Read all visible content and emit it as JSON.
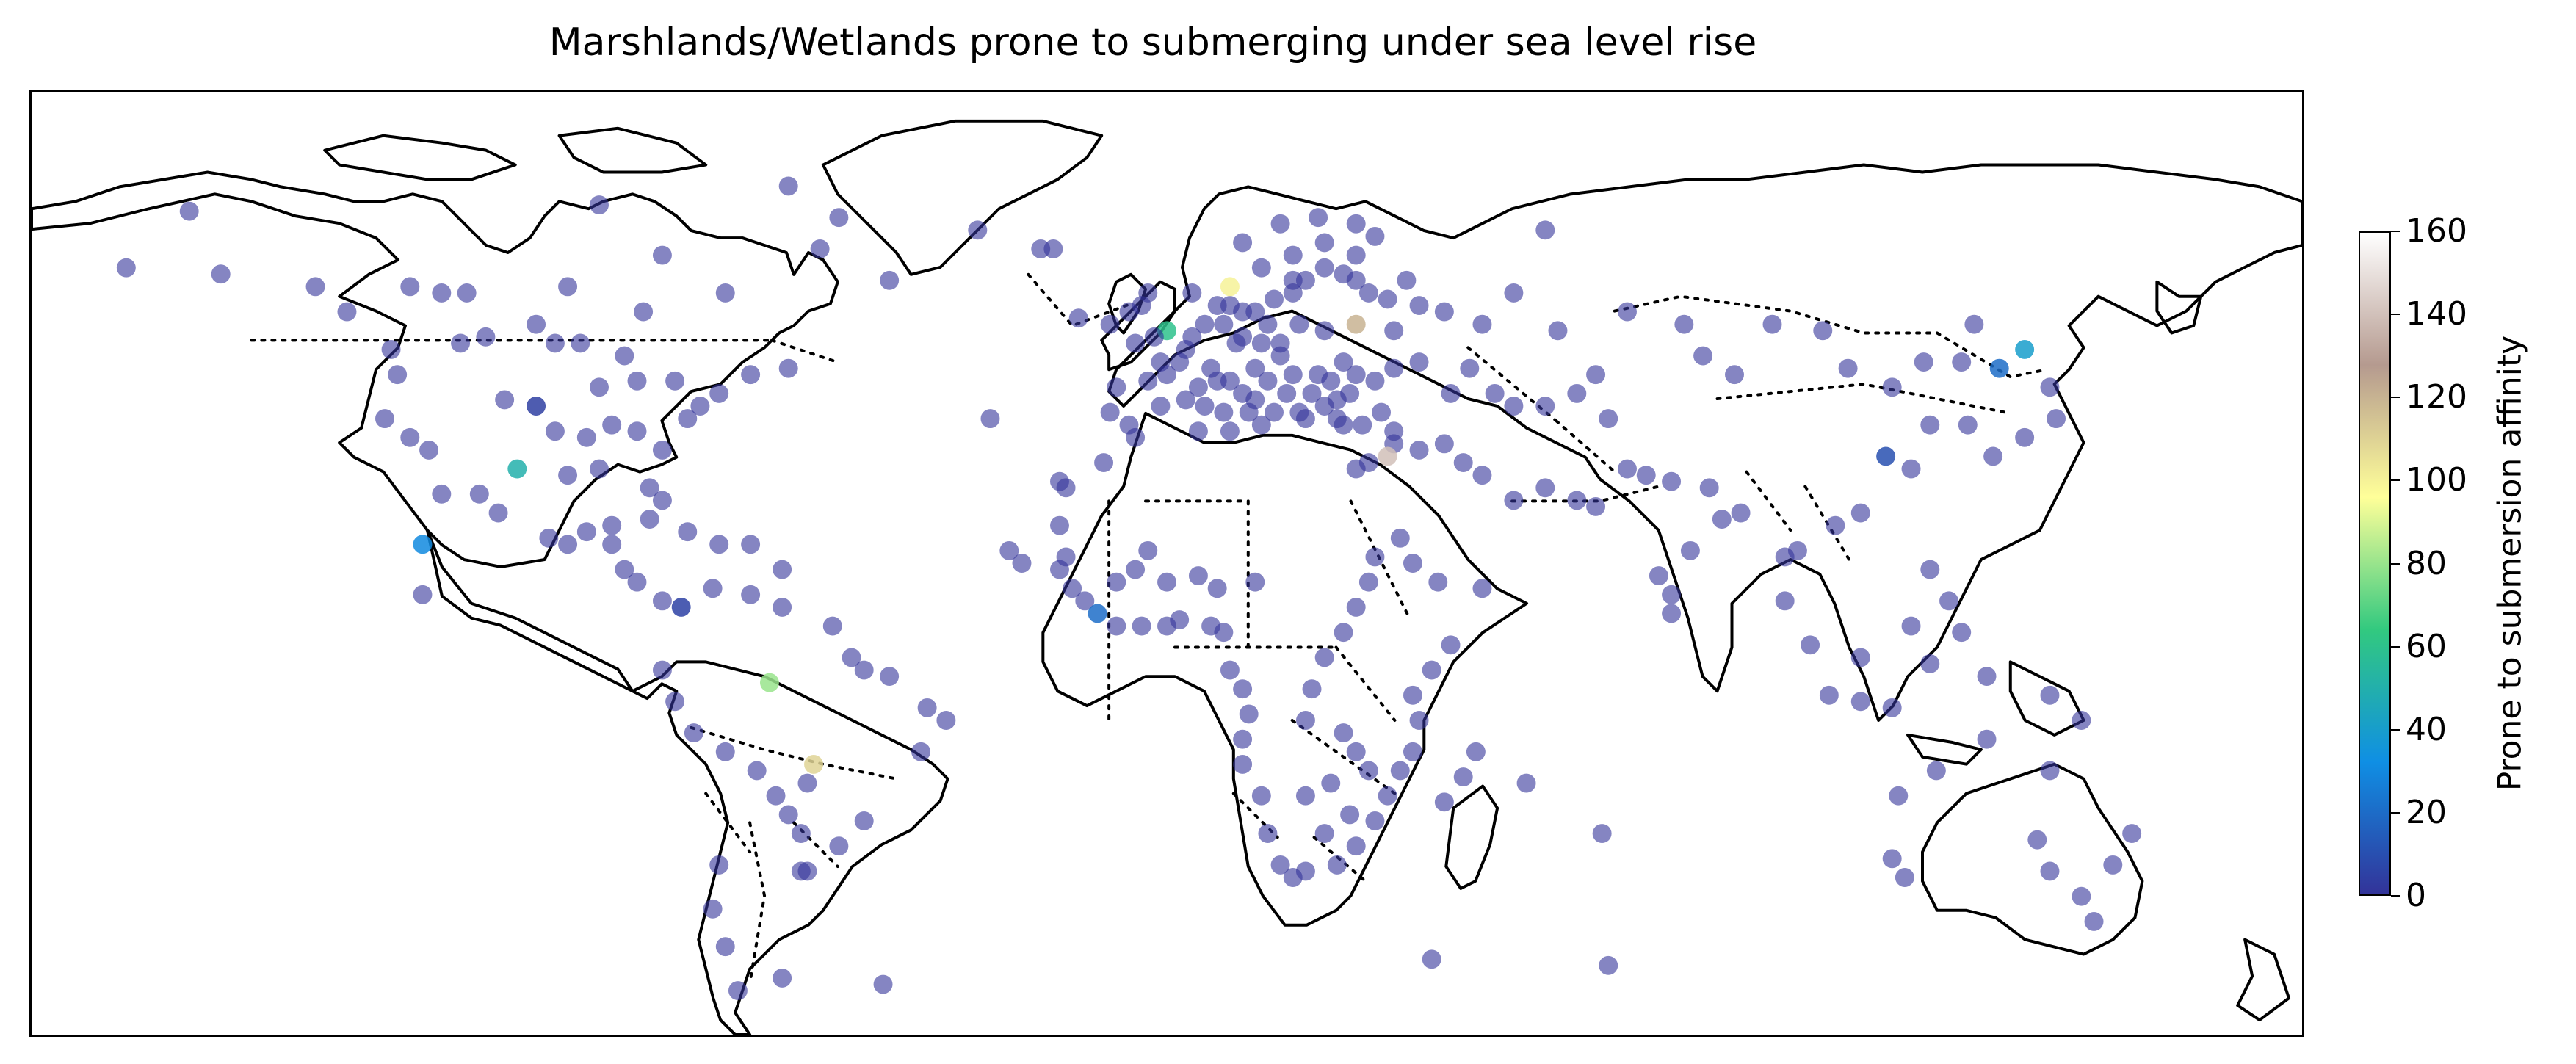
{
  "title": "Marshlands/Wetlands prone to submerging under sea level rise",
  "colorbar": {
    "label": "Prone to submersion affinity",
    "ticks": [
      "0",
      "20",
      "40",
      "60",
      "80",
      "100",
      "120",
      "140",
      "160"
    ],
    "range": [
      0,
      160
    ],
    "colormap": "terrain",
    "colors": [
      "#333399",
      "#0f8fe4",
      "#32c97f",
      "#ffff99",
      "#b59a8f",
      "#ffffff"
    ]
  },
  "chart_data": {
    "type": "scatter",
    "title": "Marshlands/Wetlands prone to submerging under sea level rise",
    "projection": "equirectangular",
    "xlim": [
      -180,
      180
    ],
    "ylim": [
      -60,
      90
    ],
    "color_label": "Prone to submersion affinity",
    "color_range": [
      0,
      160
    ],
    "points": [
      [
        -124,
        38,
        0
      ],
      [
        -117,
        33,
        0
      ],
      [
        -95,
        29,
        0
      ],
      [
        -90,
        30,
        0
      ],
      [
        -82,
        27,
        0
      ],
      [
        -80,
        25,
        0
      ],
      [
        -76,
        38,
        0
      ],
      [
        -74,
        40,
        0
      ],
      [
        -71,
        42,
        0
      ],
      [
        -66,
        45,
        0
      ],
      [
        -60,
        46,
        0
      ],
      [
        -123,
        49,
        0
      ],
      [
        -122,
        45,
        0
      ],
      [
        -130,
        55,
        0
      ],
      [
        -135,
        59,
        0
      ],
      [
        -150,
        61,
        0
      ],
      [
        -165,
        62,
        0
      ],
      [
        -155,
        71,
        0
      ],
      [
        -120,
        59,
        0
      ],
      [
        -115,
        58,
        0
      ],
      [
        -111,
        58,
        0
      ],
      [
        -108,
        51,
        0
      ],
      [
        -100,
        53,
        0
      ],
      [
        -97,
        50,
        0
      ],
      [
        -93,
        50,
        0
      ],
      [
        -86,
        48,
        0
      ],
      [
        -83,
        55,
        0
      ],
      [
        -95,
        59,
        0
      ],
      [
        -112,
        50,
        0
      ],
      [
        -105,
        41,
        0
      ],
      [
        -100,
        40,
        4
      ],
      [
        -97,
        36,
        0
      ],
      [
        -92,
        35,
        0
      ],
      [
        -88,
        37,
        0
      ],
      [
        -84,
        36,
        0
      ],
      [
        -80,
        33,
        0
      ],
      [
        -90,
        43,
        0
      ],
      [
        -84,
        44,
        0
      ],
      [
        -78,
        44,
        0
      ],
      [
        -120,
        35,
        0
      ],
      [
        -109,
        26,
        0
      ],
      [
        -106,
        23,
        0
      ],
      [
        -98,
        19,
        0
      ],
      [
        -95,
        18,
        0
      ],
      [
        -92,
        20,
        0
      ],
      [
        -88,
        21,
        0
      ],
      [
        -88,
        18,
        0
      ],
      [
        -86,
        14,
        0
      ],
      [
        -84,
        12,
        0
      ],
      [
        -80,
        9,
        0
      ],
      [
        -77,
        8,
        5
      ],
      [
        -82,
        22,
        0
      ],
      [
        -76,
        20,
        0
      ],
      [
        -71,
        18,
        0
      ],
      [
        -66,
        18,
        0
      ],
      [
        -61,
        14,
        0
      ],
      [
        -72,
        11,
        0
      ],
      [
        -66,
        10,
        0
      ],
      [
        -61,
        8,
        0
      ],
      [
        -53,
        5,
        0
      ],
      [
        -50,
        0,
        0
      ],
      [
        -48,
        -2,
        0
      ],
      [
        -44,
        -3,
        0
      ],
      [
        -38,
        -8,
        0
      ],
      [
        -35,
        -10,
        0
      ],
      [
        -39,
        -15,
        0
      ],
      [
        -80,
        -2,
        0
      ],
      [
        -78,
        -7,
        0
      ],
      [
        -75,
        -12,
        0
      ],
      [
        -70,
        -15,
        0
      ],
      [
        -65,
        -18,
        0
      ],
      [
        -62,
        -22,
        0
      ],
      [
        -60,
        -25,
        0
      ],
      [
        -58,
        -28,
        0
      ],
      [
        -58,
        -34,
        0
      ],
      [
        -52,
        -30,
        0
      ],
      [
        -48,
        -26,
        0
      ],
      [
        -56,
        -17,
        110
      ],
      [
        -57,
        -20,
        0
      ],
      [
        -63,
        -4,
        80
      ],
      [
        -71,
        -33,
        0
      ],
      [
        -72,
        -40,
        0
      ],
      [
        -70,
        -46,
        0
      ],
      [
        -68,
        -53,
        0
      ],
      [
        -61,
        -51,
        0
      ],
      [
        -57,
        -34,
        0
      ],
      [
        -118,
        18,
        30
      ],
      [
        -118,
        10,
        0
      ],
      [
        -103,
        30,
        50
      ],
      [
        -115,
        26,
        0
      ],
      [
        -44,
        60,
        0
      ],
      [
        -55,
        65,
        0
      ],
      [
        -52,
        70,
        0
      ],
      [
        -60,
        75,
        0
      ],
      [
        -90,
        72,
        0
      ],
      [
        -80,
        64,
        0
      ],
      [
        -70,
        58,
        0
      ],
      [
        -30,
        68,
        0
      ],
      [
        -20,
        65,
        0
      ],
      [
        -18,
        65,
        0
      ],
      [
        -14,
        54,
        0
      ],
      [
        -9,
        53,
        0
      ],
      [
        -6,
        55,
        0
      ],
      [
        -4,
        56,
        0
      ],
      [
        -3,
        58,
        0
      ],
      [
        0,
        52,
        60
      ],
      [
        -2,
        51,
        0
      ],
      [
        -5,
        50,
        0
      ],
      [
        -8,
        43,
        0
      ],
      [
        -9,
        39,
        0
      ],
      [
        -6,
        37,
        0
      ],
      [
        0,
        45,
        0
      ],
      [
        2,
        47,
        0
      ],
      [
        5,
        43,
        0
      ],
      [
        8,
        44,
        0
      ],
      [
        10,
        44,
        0
      ],
      [
        12,
        42,
        0
      ],
      [
        14,
        41,
        0
      ],
      [
        16,
        44,
        0
      ],
      [
        19,
        42,
        0
      ],
      [
        22,
        38,
        0
      ],
      [
        25,
        40,
        0
      ],
      [
        27,
        41,
        0
      ],
      [
        30,
        45,
        0
      ],
      [
        33,
        44,
        0
      ],
      [
        36,
        46,
        0
      ],
      [
        40,
        47,
        0
      ],
      [
        45,
        42,
        0
      ],
      [
        28,
        47,
        0
      ],
      [
        24,
        45,
        0
      ],
      [
        20,
        45,
        0
      ],
      [
        18,
        48,
        0
      ],
      [
        15,
        50,
        0
      ],
      [
        12,
        51,
        0
      ],
      [
        9,
        53,
        0
      ],
      [
        6,
        53,
        0
      ],
      [
        4,
        51,
        0
      ],
      [
        8,
        56,
        0
      ],
      [
        10,
        56,
        0
      ],
      [
        12,
        55,
        0
      ],
      [
        14,
        55,
        0
      ],
      [
        17,
        57,
        0
      ],
      [
        20,
        58,
        0
      ],
      [
        22,
        60,
        0
      ],
      [
        25,
        62,
        0
      ],
      [
        28,
        61,
        0
      ],
      [
        30,
        60,
        0
      ],
      [
        32,
        58,
        0
      ],
      [
        35,
        57,
        0
      ],
      [
        40,
        56,
        0
      ],
      [
        38,
        60,
        0
      ],
      [
        30,
        64,
        0
      ],
      [
        25,
        66,
        0
      ],
      [
        20,
        64,
        0
      ],
      [
        15,
        62,
        0
      ],
      [
        12,
        66,
        0
      ],
      [
        18,
        69,
        0
      ],
      [
        24,
        70,
        0
      ],
      [
        30,
        69,
        0
      ],
      [
        33,
        67,
        0
      ],
      [
        44,
        55,
        0
      ],
      [
        50,
        53,
        0
      ],
      [
        48,
        46,
        0
      ],
      [
        52,
        42,
        0
      ],
      [
        55,
        40,
        0
      ],
      [
        60,
        40,
        0
      ],
      [
        65,
        42,
        0
      ],
      [
        70,
        38,
        0
      ],
      [
        68,
        45,
        0
      ],
      [
        62,
        52,
        0
      ],
      [
        73,
        55,
        0
      ],
      [
        82,
        53,
        0
      ],
      [
        85,
        48,
        0
      ],
      [
        90,
        45,
        0
      ],
      [
        96,
        53,
        0
      ],
      [
        104,
        52,
        0
      ],
      [
        108,
        46,
        0
      ],
      [
        115,
        43,
        0
      ],
      [
        120,
        47,
        0
      ],
      [
        126,
        47,
        0
      ],
      [
        128,
        53,
        0
      ],
      [
        132,
        46,
        20
      ],
      [
        136,
        49,
        40
      ],
      [
        140,
        43,
        0
      ],
      [
        141,
        38,
        0
      ],
      [
        136,
        35,
        0
      ],
      [
        131,
        32,
        0
      ],
      [
        127,
        37,
        0
      ],
      [
        121,
        37,
        0
      ],
      [
        118,
        30,
        0
      ],
      [
        114,
        32,
        10
      ],
      [
        110,
        23,
        0
      ],
      [
        106,
        21,
        0
      ],
      [
        100,
        17,
        0
      ],
      [
        98,
        9,
        0
      ],
      [
        102,
        2,
        0
      ],
      [
        105,
        -6,
        0
      ],
      [
        110,
        -7,
        0
      ],
      [
        115,
        -8,
        0
      ],
      [
        121,
        -1,
        0
      ],
      [
        121,
        14,
        0
      ],
      [
        124,
        9,
        0
      ],
      [
        126,
        4,
        0
      ],
      [
        118,
        5,
        0
      ],
      [
        110,
        0,
        0
      ],
      [
        130,
        -3,
        0
      ],
      [
        140,
        -6,
        0
      ],
      [
        145,
        -10,
        0
      ],
      [
        140,
        -18,
        0
      ],
      [
        130,
        -13,
        0
      ],
      [
        122,
        -18,
        0
      ],
      [
        116,
        -22,
        0
      ],
      [
        115,
        -32,
        0
      ],
      [
        117,
        -35,
        0
      ],
      [
        138,
        -29,
        0
      ],
      [
        140,
        -34,
        0
      ],
      [
        145,
        -38,
        0
      ],
      [
        150,
        -33,
        0
      ],
      [
        153,
        -28,
        0
      ],
      [
        147,
        -42,
        0
      ],
      [
        78,
        13,
        0
      ],
      [
        80,
        10,
        0
      ],
      [
        83,
        17,
        0
      ],
      [
        88,
        22,
        0
      ],
      [
        91,
        23,
        0
      ],
      [
        86,
        27,
        0
      ],
      [
        80,
        28,
        0
      ],
      [
        76,
        29,
        0
      ],
      [
        73,
        30,
        0
      ],
      [
        68,
        24,
        0
      ],
      [
        65,
        25,
        0
      ],
      [
        60,
        27,
        0
      ],
      [
        55,
        25,
        0
      ],
      [
        50,
        29,
        0
      ],
      [
        47,
        31,
        0
      ],
      [
        44,
        34,
        0
      ],
      [
        40,
        33,
        0
      ],
      [
        36,
        34,
        0
      ],
      [
        32,
        31,
        0
      ],
      [
        30,
        30,
        0
      ],
      [
        35,
        32,
        140
      ],
      [
        36,
        36,
        0
      ],
      [
        28,
        37,
        0
      ],
      [
        15,
        37,
        0
      ],
      [
        10,
        36,
        0
      ],
      [
        5,
        36,
        0
      ],
      [
        -5,
        35,
        0
      ],
      [
        -10,
        31,
        0
      ],
      [
        -16,
        27,
        0
      ],
      [
        -17,
        21,
        0
      ],
      [
        -16,
        16,
        0
      ],
      [
        -17,
        14,
        0
      ],
      [
        -15,
        11,
        0
      ],
      [
        -13,
        9,
        0
      ],
      [
        -11,
        7,
        20
      ],
      [
        -8,
        5,
        0
      ],
      [
        -4,
        5,
        0
      ],
      [
        0,
        5,
        0
      ],
      [
        2,
        6,
        0
      ],
      [
        7,
        5,
        0
      ],
      [
        9,
        4,
        0
      ],
      [
        10,
        -2,
        0
      ],
      [
        12,
        -5,
        0
      ],
      [
        13,
        -9,
        0
      ],
      [
        12,
        -13,
        0
      ],
      [
        12,
        -17,
        0
      ],
      [
        15,
        -22,
        0
      ],
      [
        16,
        -28,
        0
      ],
      [
        18,
        -33,
        0
      ],
      [
        20,
        -35,
        0
      ],
      [
        22,
        -34,
        0
      ],
      [
        27,
        -33,
        0
      ],
      [
        30,
        -30,
        0
      ],
      [
        33,
        -26,
        0
      ],
      [
        35,
        -22,
        0
      ],
      [
        37,
        -18,
        0
      ],
      [
        39,
        -15,
        0
      ],
      [
        40,
        -10,
        0
      ],
      [
        39,
        -6,
        0
      ],
      [
        42,
        -2,
        0
      ],
      [
        45,
        2,
        0
      ],
      [
        50,
        11,
        0
      ],
      [
        43,
        12,
        0
      ],
      [
        39,
        15,
        0
      ],
      [
        37,
        19,
        0
      ],
      [
        33,
        16,
        0
      ],
      [
        32,
        12,
        0
      ],
      [
        30,
        8,
        0
      ],
      [
        28,
        4,
        0
      ],
      [
        25,
        0,
        0
      ],
      [
        23,
        -5,
        0
      ],
      [
        22,
        -10,
        0
      ],
      [
        28,
        -12,
        0
      ],
      [
        30,
        -15,
        0
      ],
      [
        32,
        -18,
        0
      ],
      [
        26,
        -20,
        0
      ],
      [
        22,
        -22,
        0
      ],
      [
        29,
        -25,
        0
      ],
      [
        25,
        -28,
        0
      ],
      [
        47,
        -19,
        0
      ],
      [
        57,
        -20,
        0
      ],
      [
        44,
        -23,
        0
      ],
      [
        49,
        -15,
        0
      ],
      [
        -8,
        12,
        0
      ],
      [
        -5,
        14,
        0
      ],
      [
        0,
        12,
        0
      ],
      [
        5,
        13,
        0
      ],
      [
        8,
        11,
        0
      ],
      [
        -3,
        17,
        0
      ],
      [
        14,
        12,
        0
      ],
      [
        -25,
        17,
        0
      ],
      [
        -23,
        15,
        0
      ],
      [
        -17,
        28,
        0
      ],
      [
        -28,
        38,
        0
      ],
      [
        -45,
        -52,
        0
      ],
      [
        42,
        -48,
        0
      ],
      [
        70,
        -49,
        0
      ],
      [
        69,
        -28,
        0
      ],
      [
        80,
        7,
        0
      ],
      [
        98,
        16,
        0
      ],
      [
        10,
        59,
        100
      ],
      [
        4,
        58,
        0
      ],
      [
        20,
        60,
        0
      ],
      [
        60,
        68,
        0
      ],
      [
        55,
        58,
        0
      ],
      [
        36,
        52,
        0
      ],
      [
        30,
        53,
        120
      ],
      [
        25,
        52,
        0
      ],
      [
        21,
        53,
        0
      ],
      [
        18,
        50,
        0
      ],
      [
        16,
        53,
        0
      ],
      [
        14,
        46,
        0
      ],
      [
        11,
        50,
        0
      ],
      [
        7,
        46,
        0
      ],
      [
        3,
        49,
        0
      ],
      [
        -1,
        47,
        0
      ],
      [
        -3,
        44,
        0
      ],
      [
        -1,
        40,
        0
      ],
      [
        3,
        41,
        0
      ],
      [
        6,
        40,
        0
      ],
      [
        9,
        39,
        0
      ],
      [
        13,
        39,
        0
      ],
      [
        17,
        39,
        0
      ],
      [
        21,
        39,
        0
      ],
      [
        23,
        42,
        0
      ],
      [
        26,
        44,
        0
      ],
      [
        29,
        42,
        0
      ],
      [
        27,
        38,
        0
      ],
      [
        31,
        37,
        0
      ],
      [
        34,
        39,
        0
      ]
    ]
  }
}
